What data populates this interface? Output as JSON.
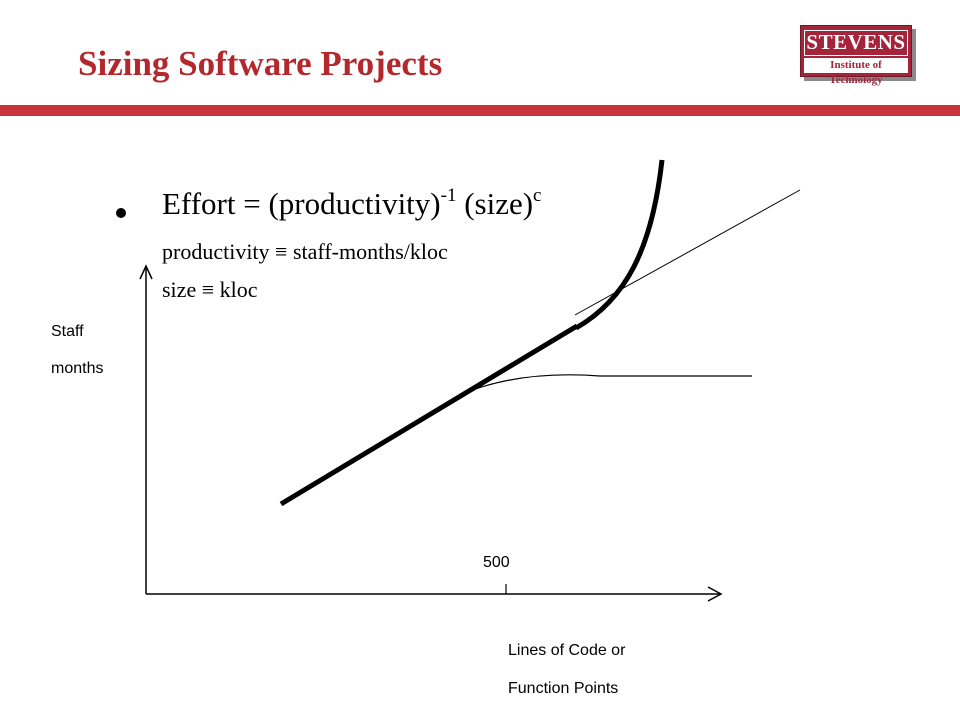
{
  "header": {
    "title": "Sizing Software Projects",
    "logo": {
      "main": "STEVENS",
      "sub": "Institute of Technology",
      "color": "#a4243b"
    },
    "accent_color": "#c8323a"
  },
  "content": {
    "formula": {
      "lhs": "Effort = (productivity)",
      "exp1": "-1",
      "mid": " (size)",
      "exp2": "c"
    },
    "definitions": [
      "productivity ≡ staff-months/kloc",
      "size ≡ kloc"
    ]
  },
  "diagram": {
    "y_label": [
      "Staff",
      "months"
    ],
    "x_label": [
      "Lines of Code or",
      "Function Points"
    ],
    "x_tick": "500",
    "curves": [
      "linear-trend",
      "diseconomy-of-scale",
      "economy-of-scale"
    ]
  }
}
